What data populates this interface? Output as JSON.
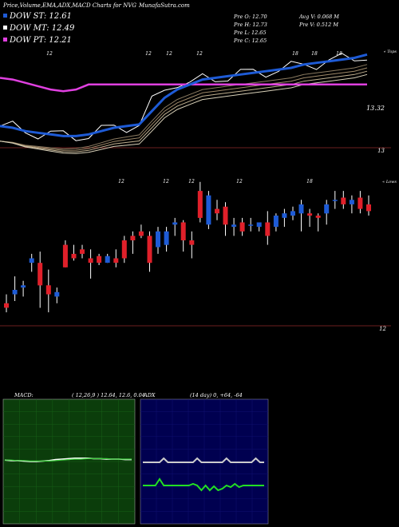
{
  "header": {
    "title": "Price,Volume,EMA,ADX,MACD Charts for NVG",
    "site": "MunafaSutra.com"
  },
  "legend": [
    {
      "label": "DOW ST: 12.61",
      "color": "#1e5bd6"
    },
    {
      "label": "DOW MT: 12.49",
      "color": "#ffffff"
    },
    {
      "label": "DOW PT: 12.21",
      "color": "#e040e0"
    }
  ],
  "stats": {
    "prev_open": "Pre   O: 12.70",
    "prev_high": "Pre   H: 12.73",
    "prev_low": "Pre   L: 12.65",
    "prev_close": "Pre   C: 12.65",
    "avg_volume": "Avg V: 0.068   M",
    "prev_volume": "Pre   V: 0.512   M"
  },
  "colors": {
    "up": "#1e5bd6",
    "down": "#e0202a",
    "ema_short": "#1e5bd6",
    "ema_long": "#e040e0",
    "macd_bg": "#0b3d0b",
    "adx_bg": "#000050",
    "separator": "#6b1f1f"
  },
  "chart_data": [
    {
      "type": "line",
      "name": "price-ema",
      "title": "",
      "corner_label": "« Tops",
      "date_labels": [
        "12",
        "12",
        "12",
        "12",
        "18",
        "18",
        "18"
      ],
      "yticks": [
        "13.32",
        "13"
      ],
      "series": [
        {
          "name": "DOW ST",
          "values": [
            12.95,
            12.94,
            12.92,
            12.91,
            12.9,
            12.89,
            12.89,
            12.9,
            12.92,
            12.94,
            12.95,
            12.96,
            13.04,
            13.12,
            13.17,
            13.2,
            13.23,
            13.24,
            13.25,
            13.26,
            13.27,
            13.28,
            13.29,
            13.3,
            13.32,
            13.33,
            13.34,
            13.35,
            13.36,
            13.38
          ]
        },
        {
          "name": "DOW PT",
          "values": [
            13.24,
            13.23,
            13.21,
            13.19,
            13.17,
            13.16,
            13.17,
            13.2,
            13.2,
            13.2,
            13.2,
            13.2,
            13.2,
            13.2,
            13.2,
            13.2,
            13.2,
            13.2,
            13.2,
            13.2,
            13.2,
            13.2,
            13.2,
            13.2,
            13.2,
            13.2,
            13.2,
            13.2,
            13.2,
            13.2
          ]
        }
      ]
    },
    {
      "type": "candlestick",
      "name": "price-candles",
      "title": "",
      "corner_label": "« Lows",
      "date_labels": [
        "12",
        "12",
        "12",
        "12",
        "18"
      ],
      "yticks": [
        "12"
      ],
      "candles": [
        {
          "o": 12.4,
          "h": 12.44,
          "l": 12.36,
          "c": 12.38
        },
        {
          "o": 12.44,
          "h": 12.52,
          "l": 12.41,
          "c": 12.46
        },
        {
          "o": 12.47,
          "h": 12.5,
          "l": 12.43,
          "c": 12.48
        },
        {
          "o": 12.58,
          "h": 12.62,
          "l": 12.54,
          "c": 12.6
        },
        {
          "o": 12.58,
          "h": 12.63,
          "l": 12.38,
          "c": 12.48
        },
        {
          "o": 12.48,
          "h": 12.55,
          "l": 12.36,
          "c": 12.44
        },
        {
          "o": 12.43,
          "h": 12.47,
          "l": 12.4,
          "c": 12.45
        },
        {
          "o": 12.66,
          "h": 12.68,
          "l": 12.56,
          "c": 12.56
        },
        {
          "o": 12.62,
          "h": 12.66,
          "l": 12.59,
          "c": 12.6
        },
        {
          "o": 12.64,
          "h": 12.66,
          "l": 12.6,
          "c": 12.62
        },
        {
          "o": 12.6,
          "h": 12.64,
          "l": 12.51,
          "c": 12.58
        },
        {
          "o": 12.61,
          "h": 12.62,
          "l": 12.57,
          "c": 12.58
        },
        {
          "o": 12.58,
          "h": 12.62,
          "l": 12.58,
          "c": 12.61
        },
        {
          "o": 12.6,
          "h": 12.64,
          "l": 12.56,
          "c": 12.58
        },
        {
          "o": 12.68,
          "h": 12.7,
          "l": 12.58,
          "c": 12.6
        },
        {
          "o": 12.7,
          "h": 12.72,
          "l": 12.62,
          "c": 12.68
        },
        {
          "o": 12.72,
          "h": 12.75,
          "l": 12.69,
          "c": 12.7
        },
        {
          "o": 12.7,
          "h": 12.72,
          "l": 12.54,
          "c": 12.58
        },
        {
          "o": 12.65,
          "h": 12.74,
          "l": 12.62,
          "c": 12.72
        },
        {
          "o": 12.66,
          "h": 12.74,
          "l": 12.63,
          "c": 12.72
        },
        {
          "o": 12.75,
          "h": 12.78,
          "l": 12.7,
          "c": 12.76
        },
        {
          "o": 12.76,
          "h": 12.77,
          "l": 12.63,
          "c": 12.68
        },
        {
          "o": 12.68,
          "h": 12.72,
          "l": 12.6,
          "c": 12.66
        },
        {
          "o": 12.9,
          "h": 12.94,
          "l": 12.76,
          "c": 12.78
        },
        {
          "o": 12.75,
          "h": 12.9,
          "l": 12.73,
          "c": 12.88
        },
        {
          "o": 12.82,
          "h": 12.86,
          "l": 12.77,
          "c": 12.8
        },
        {
          "o": 12.83,
          "h": 12.85,
          "l": 12.7,
          "c": 12.75
        },
        {
          "o": 12.74,
          "h": 12.78,
          "l": 12.7,
          "c": 12.75
        },
        {
          "o": 12.76,
          "h": 12.78,
          "l": 12.7,
          "c": 12.72
        },
        {
          "o": 12.75,
          "h": 12.78,
          "l": 12.72,
          "c": 12.75
        },
        {
          "o": 12.74,
          "h": 12.76,
          "l": 12.72,
          "c": 12.76
        },
        {
          "o": 12.76,
          "h": 12.81,
          "l": 12.66,
          "c": 12.7
        },
        {
          "o": 12.74,
          "h": 12.8,
          "l": 12.72,
          "c": 12.79
        },
        {
          "o": 12.78,
          "h": 12.82,
          "l": 12.74,
          "c": 12.8
        },
        {
          "o": 12.79,
          "h": 12.83,
          "l": 12.77,
          "c": 12.81
        },
        {
          "o": 12.8,
          "h": 12.86,
          "l": 12.72,
          "c": 12.84
        },
        {
          "o": 12.8,
          "h": 12.82,
          "l": 12.74,
          "c": 12.79
        },
        {
          "o": 12.79,
          "h": 12.8,
          "l": 12.72,
          "c": 12.78
        },
        {
          "o": 12.8,
          "h": 12.86,
          "l": 12.75,
          "c": 12.84
        },
        {
          "o": 12.86,
          "h": 12.9,
          "l": 12.82,
          "c": 12.86
        },
        {
          "o": 12.87,
          "h": 12.9,
          "l": 12.82,
          "c": 12.84
        },
        {
          "o": 12.84,
          "h": 12.88,
          "l": 12.8,
          "c": 12.86
        },
        {
          "o": 12.87,
          "h": 12.9,
          "l": 12.8,
          "c": 12.82
        },
        {
          "o": 12.84,
          "h": 12.88,
          "l": 12.79,
          "c": 12.81
        }
      ]
    },
    {
      "type": "line",
      "name": "macd",
      "title": "MACD:",
      "params": "( 12,26,9 ) 12.64,  12.6,  0.04",
      "ylim": [
        -1,
        1
      ],
      "series": [
        {
          "name": "macd",
          "values": [
            0.03,
            0.02,
            0.02,
            0.01,
            0.0,
            0.0,
            0.01,
            0.02,
            0.04,
            0.05,
            0.06,
            0.07,
            0.07,
            0.07,
            0.06,
            0.06,
            0.05,
            0.05,
            0.05,
            0.04,
            0.04
          ]
        },
        {
          "name": "signal",
          "values": [
            0.03,
            0.03,
            0.02,
            0.02,
            0.01,
            0.01,
            0.01,
            0.01,
            0.02,
            0.03,
            0.04,
            0.05,
            0.05,
            0.06,
            0.06,
            0.06,
            0.06,
            0.05,
            0.05,
            0.05,
            0.05
          ]
        }
      ]
    },
    {
      "type": "line",
      "name": "adx",
      "title": "ADX",
      "params": "(14   day)  0,   +64,   -64",
      "ylim": [
        0,
        100
      ],
      "series": [
        {
          "name": "adx",
          "values": [
            0,
            0,
            0,
            0,
            0,
            0,
            0,
            0,
            0,
            0,
            0,
            0,
            0,
            0,
            0,
            0,
            0,
            0,
            0,
            0,
            0,
            0,
            0,
            0,
            0,
            0,
            0,
            0,
            0,
            0
          ]
        },
        {
          "name": "+di",
          "values": [
            64,
            64,
            64,
            64,
            64,
            64,
            64,
            64,
            64,
            64,
            64,
            64,
            64,
            64,
            64,
            64,
            64,
            64,
            64,
            64,
            64,
            64,
            64,
            64,
            64,
            64,
            64,
            64,
            64,
            64
          ]
        },
        {
          "name": "-di",
          "values": [
            64,
            64,
            64,
            64,
            64,
            64,
            64,
            64,
            64,
            64,
            64,
            64,
            64,
            64,
            64,
            64,
            64,
            64,
            64,
            64,
            64,
            64,
            64,
            64,
            64,
            64,
            64,
            64,
            64,
            64
          ]
        }
      ]
    }
  ]
}
